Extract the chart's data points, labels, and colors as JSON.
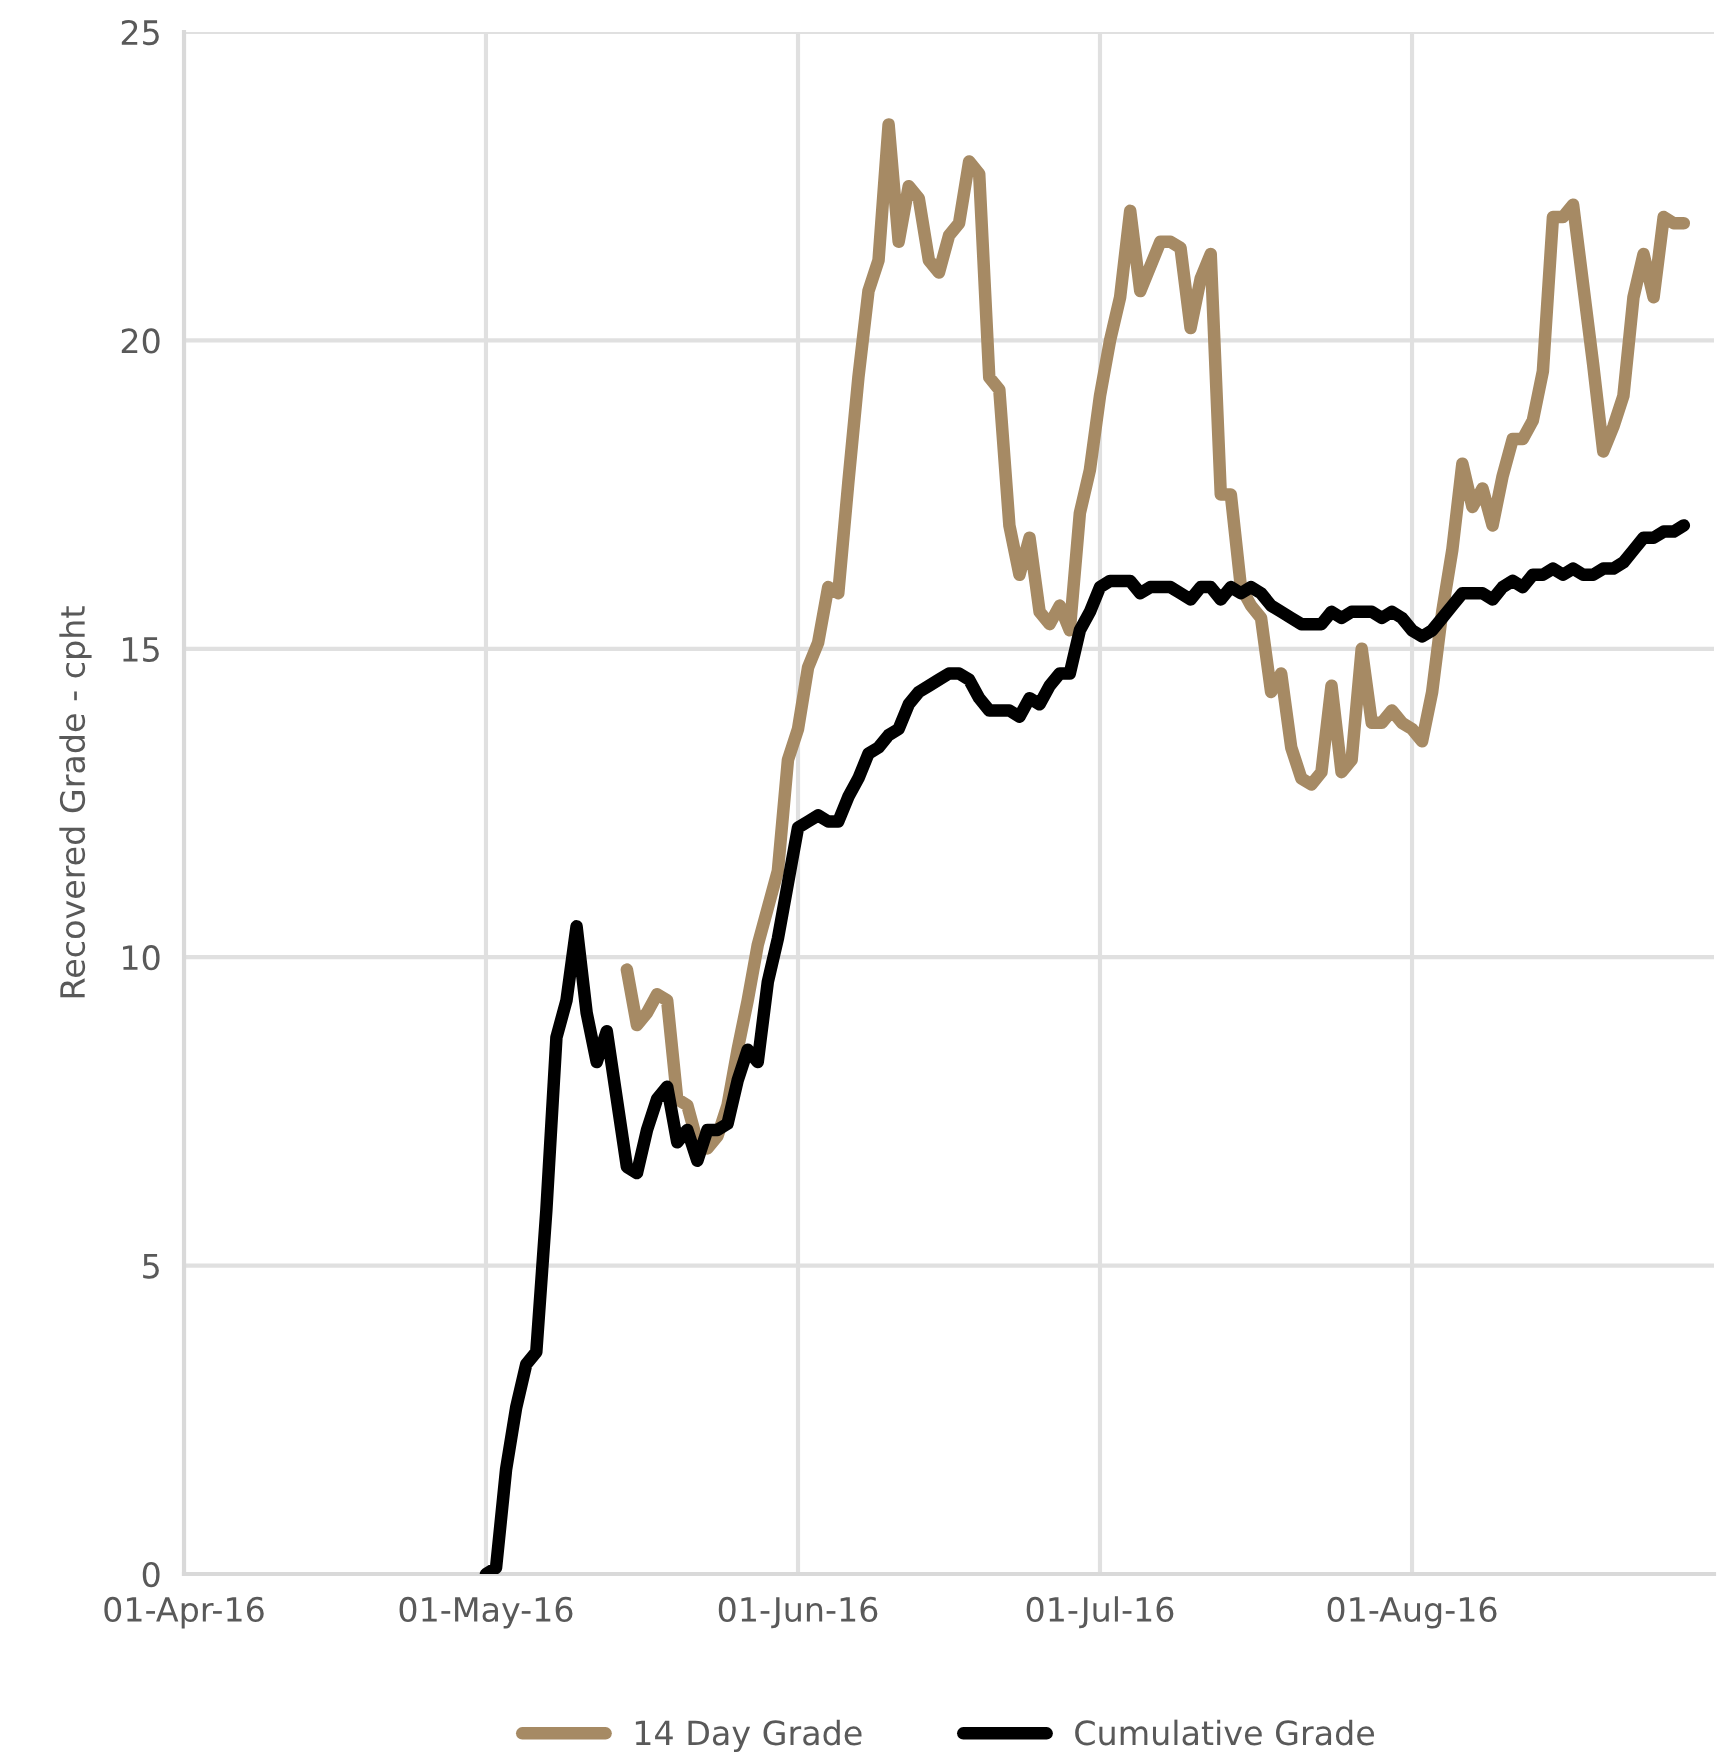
{
  "chart_data": {
    "type": "line",
    "ylabel": "Recovered Grade - cpht",
    "xlim": [
      "2016-04-01",
      "2016-08-31"
    ],
    "xticks": [
      {
        "value": "2016-04-01",
        "label": "01-Apr-16"
      },
      {
        "value": "2016-05-01",
        "label": "01-May-16"
      },
      {
        "value": "2016-06-01",
        "label": "01-Jun-16"
      },
      {
        "value": "2016-07-01",
        "label": "01-Jul-16"
      },
      {
        "value": "2016-08-01",
        "label": "01-Aug-16"
      }
    ],
    "ylim": [
      0,
      25
    ],
    "yticks": [
      0,
      5,
      10,
      15,
      20,
      25
    ],
    "grid": true,
    "legend": "bottom",
    "marker": "none",
    "line_style": "solid",
    "series": [
      {
        "name": "14 Day Grade",
        "color": "#a68a64",
        "x": [
          "2016-05-15",
          "2016-05-16",
          "2016-05-17",
          "2016-05-18",
          "2016-05-19",
          "2016-05-20",
          "2016-05-21",
          "2016-05-22",
          "2016-05-23",
          "2016-05-24",
          "2016-05-25",
          "2016-05-26",
          "2016-05-27",
          "2016-05-28",
          "2016-05-29",
          "2016-05-30",
          "2016-05-31",
          "2016-06-01",
          "2016-06-02",
          "2016-06-03",
          "2016-06-04",
          "2016-06-05",
          "2016-06-06",
          "2016-06-07",
          "2016-06-08",
          "2016-06-09",
          "2016-06-10",
          "2016-06-11",
          "2016-06-12",
          "2016-06-13",
          "2016-06-14",
          "2016-06-15",
          "2016-06-16",
          "2016-06-17",
          "2016-06-18",
          "2016-06-19",
          "2016-06-20",
          "2016-06-21",
          "2016-06-22",
          "2016-06-23",
          "2016-06-24",
          "2016-06-25",
          "2016-06-26",
          "2016-06-27",
          "2016-06-28",
          "2016-06-29",
          "2016-06-30",
          "2016-07-01",
          "2016-07-02",
          "2016-07-03",
          "2016-07-04",
          "2016-07-05",
          "2016-07-06",
          "2016-07-07",
          "2016-07-08",
          "2016-07-09",
          "2016-07-10",
          "2016-07-11",
          "2016-07-12",
          "2016-07-13",
          "2016-07-14",
          "2016-07-15",
          "2016-07-16",
          "2016-07-17",
          "2016-07-18",
          "2016-07-19",
          "2016-07-20",
          "2016-07-21",
          "2016-07-22",
          "2016-07-23",
          "2016-07-24",
          "2016-07-25",
          "2016-07-26",
          "2016-07-27",
          "2016-07-28",
          "2016-07-29",
          "2016-07-30",
          "2016-07-31",
          "2016-08-01",
          "2016-08-02",
          "2016-08-03",
          "2016-08-04",
          "2016-08-05",
          "2016-08-06",
          "2016-08-07",
          "2016-08-08",
          "2016-08-09",
          "2016-08-10",
          "2016-08-11",
          "2016-08-12",
          "2016-08-13",
          "2016-08-14",
          "2016-08-15",
          "2016-08-16",
          "2016-08-17",
          "2016-08-18",
          "2016-08-19",
          "2016-08-20",
          "2016-08-21",
          "2016-08-22",
          "2016-08-23",
          "2016-08-24",
          "2016-08-25",
          "2016-08-26",
          "2016-08-27",
          "2016-08-28"
        ],
        "values": [
          9.8,
          8.9,
          9.1,
          9.4,
          9.3,
          7.7,
          7.6,
          7.0,
          6.9,
          7.1,
          7.6,
          8.5,
          9.3,
          10.2,
          10.8,
          11.4,
          13.2,
          13.7,
          14.7,
          15.1,
          16.0,
          15.9,
          17.7,
          19.4,
          20.8,
          21.3,
          23.5,
          21.6,
          22.5,
          22.3,
          21.3,
          21.1,
          21.7,
          21.9,
          22.9,
          22.7,
          19.4,
          19.2,
          17.0,
          16.2,
          16.8,
          15.6,
          15.4,
          15.7,
          15.3,
          17.2,
          17.9,
          19.1,
          20.0,
          20.7,
          22.1,
          20.8,
          21.2,
          21.6,
          21.6,
          21.5,
          20.2,
          21.0,
          21.4,
          17.5,
          17.5,
          16.0,
          15.7,
          15.5,
          14.3,
          14.6,
          13.4,
          12.9,
          12.8,
          13.0,
          14.4,
          13.0,
          13.2,
          15.0,
          13.8,
          13.8,
          14.0,
          13.8,
          13.7,
          13.5,
          14.3,
          15.6,
          16.6,
          18.0,
          17.3,
          17.6,
          17.0,
          17.8,
          18.4,
          18.4,
          18.7,
          19.5,
          22.0,
          22.0,
          22.2,
          20.9,
          19.6,
          18.2,
          18.6,
          19.1,
          20.7,
          21.4,
          20.7,
          22.0,
          21.9,
          21.9
        ]
      },
      {
        "name": "Cumulative Grade",
        "color": "#000000",
        "x": [
          "2016-05-01",
          "2016-05-02",
          "2016-05-03",
          "2016-05-04",
          "2016-05-05",
          "2016-05-06",
          "2016-05-07",
          "2016-05-08",
          "2016-05-09",
          "2016-05-10",
          "2016-05-11",
          "2016-05-12",
          "2016-05-13",
          "2016-05-14",
          "2016-05-15",
          "2016-05-16",
          "2016-05-17",
          "2016-05-18",
          "2016-05-19",
          "2016-05-20",
          "2016-05-21",
          "2016-05-22",
          "2016-05-23",
          "2016-05-24",
          "2016-05-25",
          "2016-05-26",
          "2016-05-27",
          "2016-05-28",
          "2016-05-29",
          "2016-05-30",
          "2016-05-31",
          "2016-06-01",
          "2016-06-02",
          "2016-06-03",
          "2016-06-04",
          "2016-06-05",
          "2016-06-06",
          "2016-06-07",
          "2016-06-08",
          "2016-06-09",
          "2016-06-10",
          "2016-06-11",
          "2016-06-12",
          "2016-06-13",
          "2016-06-14",
          "2016-06-15",
          "2016-06-16",
          "2016-06-17",
          "2016-06-18",
          "2016-06-19",
          "2016-06-20",
          "2016-06-21",
          "2016-06-22",
          "2016-06-23",
          "2016-06-24",
          "2016-06-25",
          "2016-06-26",
          "2016-06-27",
          "2016-06-28",
          "2016-06-29",
          "2016-06-30",
          "2016-07-01",
          "2016-07-02",
          "2016-07-03",
          "2016-07-04",
          "2016-07-05",
          "2016-07-06",
          "2016-07-07",
          "2016-07-08",
          "2016-07-09",
          "2016-07-10",
          "2016-07-11",
          "2016-07-12",
          "2016-07-13",
          "2016-07-14",
          "2016-07-15",
          "2016-07-16",
          "2016-07-17",
          "2016-07-18",
          "2016-07-19",
          "2016-07-20",
          "2016-07-21",
          "2016-07-22",
          "2016-07-23",
          "2016-07-24",
          "2016-07-25",
          "2016-07-26",
          "2016-07-27",
          "2016-07-28",
          "2016-07-29",
          "2016-07-30",
          "2016-07-31",
          "2016-08-01",
          "2016-08-02",
          "2016-08-03",
          "2016-08-04",
          "2016-08-05",
          "2016-08-06",
          "2016-08-07",
          "2016-08-08",
          "2016-08-09",
          "2016-08-10",
          "2016-08-11",
          "2016-08-12",
          "2016-08-13",
          "2016-08-14",
          "2016-08-15",
          "2016-08-16",
          "2016-08-17",
          "2016-08-18",
          "2016-08-19",
          "2016-08-20",
          "2016-08-21",
          "2016-08-22",
          "2016-08-23",
          "2016-08-24",
          "2016-08-25",
          "2016-08-26",
          "2016-08-27",
          "2016-08-28"
        ],
        "values": [
          0.0,
          0.1,
          1.7,
          2.7,
          3.4,
          3.6,
          5.9,
          8.7,
          9.3,
          10.5,
          9.1,
          8.3,
          8.8,
          7.7,
          6.6,
          6.5,
          7.2,
          7.7,
          7.9,
          7.0,
          7.2,
          6.7,
          7.2,
          7.2,
          7.3,
          8.0,
          8.5,
          8.3,
          9.6,
          10.3,
          11.2,
          12.1,
          12.2,
          12.3,
          12.2,
          12.2,
          12.6,
          12.9,
          13.3,
          13.4,
          13.6,
          13.7,
          14.1,
          14.3,
          14.4,
          14.5,
          14.6,
          14.6,
          14.5,
          14.2,
          14.0,
          14.0,
          14.0,
          13.9,
          14.2,
          14.1,
          14.4,
          14.6,
          14.6,
          15.3,
          15.6,
          16.0,
          16.1,
          16.1,
          16.1,
          15.9,
          16.0,
          16.0,
          16.0,
          15.9,
          15.8,
          16.0,
          16.0,
          15.8,
          16.0,
          15.9,
          16.0,
          15.9,
          15.7,
          15.6,
          15.5,
          15.4,
          15.4,
          15.4,
          15.6,
          15.5,
          15.6,
          15.6,
          15.6,
          15.5,
          15.6,
          15.5,
          15.3,
          15.2,
          15.3,
          15.5,
          15.7,
          15.9,
          15.9,
          15.9,
          15.8,
          16.0,
          16.1,
          16.0,
          16.2,
          16.2,
          16.3,
          16.2,
          16.3,
          16.2,
          16.2,
          16.3,
          16.3,
          16.4,
          16.6,
          16.8,
          16.8,
          16.9,
          16.9,
          17.0
        ]
      }
    ]
  }
}
